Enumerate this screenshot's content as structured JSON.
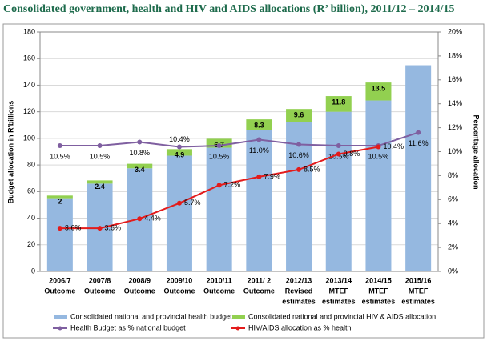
{
  "chart_data": {
    "type": "bar",
    "title": "Consolidated government, health and HIV and AIDS allocations (R’ billion), 2011/12 – 2014/15",
    "ylabel": "Budget allocation in R'billions",
    "y2label": "Percentage allocation",
    "categories": [
      [
        "2006/7",
        "Outcome"
      ],
      [
        "2007/8",
        "Outcome"
      ],
      [
        "2008/9",
        "Outcome"
      ],
      [
        "2009/10",
        "Outcome"
      ],
      [
        "2010/11",
        "Outcome"
      ],
      [
        "2011/ 2",
        "Outcome"
      ],
      [
        "2012/13",
        "Revised",
        "estimates"
      ],
      [
        "2013/14",
        "MTEF",
        "estimates"
      ],
      [
        "2014/15",
        "MTEF",
        "estimates"
      ],
      [
        "2015/16",
        "MTEF",
        "estimates"
      ]
    ],
    "stacked": true,
    "series": [
      {
        "name": "Consolidated national and provincial health budget",
        "type": "bar",
        "color": "#95b8e0",
        "values": [
          55,
          66,
          77.5,
          87,
          93,
          106,
          112.5,
          120,
          128.5,
          155
        ]
      },
      {
        "name": "Consolidated national and provincial HIV & AIDS allocation",
        "type": "bar",
        "color": "#92d050",
        "data_labels": true,
        "values": [
          2,
          2.4,
          3.4,
          4.9,
          6.7,
          8.3,
          9.6,
          11.8,
          13.5,
          null
        ]
      },
      {
        "name": "Health Budget as % national budget",
        "type": "line",
        "axis": "y2",
        "color": "#7f5fa0",
        "data_labels": true,
        "values": [
          10.5,
          10.5,
          10.8,
          10.4,
          10.5,
          11.0,
          10.6,
          10.5,
          10.5,
          11.6
        ],
        "value_labels": [
          "10.5%",
          "10.5%",
          "10.8%",
          "10.4%",
          "10.5%",
          "11.0%",
          "10.6%",
          "10.5%",
          "10.5%",
          "11.6%"
        ]
      },
      {
        "name": "HIV/AIDS allocation as % health",
        "type": "line",
        "axis": "y2",
        "color": "#e31b1b",
        "data_labels": true,
        "values": [
          3.6,
          3.6,
          4.4,
          5.7,
          7.2,
          7.9,
          8.5,
          9.8,
          10.4,
          null
        ],
        "value_labels": [
          "3.6%",
          "3.6%",
          "4.4%",
          "5.7%",
          "7.2%",
          "7.9%",
          "8.5%",
          "9.8%",
          "10.4%",
          null
        ]
      }
    ],
    "ylim": [
      0,
      180
    ],
    "yticks": [
      0,
      20,
      40,
      60,
      80,
      100,
      120,
      140,
      160,
      180
    ],
    "y2lim": [
      0,
      20
    ],
    "y2ticks": [
      {
        "value": 0,
        "label": "0%"
      },
      {
        "value": 2,
        "label": "2%"
      },
      {
        "value": 4,
        "label": "4%"
      },
      {
        "value": 6,
        "label": "6%"
      },
      {
        "value": 8,
        "label": "8%"
      },
      {
        "value": 10,
        "label": "10%"
      },
      {
        "value": 12,
        "label": "12%"
      },
      {
        "value": 14,
        "label": "14%"
      },
      {
        "value": 16,
        "label": "16%"
      },
      {
        "value": 18,
        "label": "18%"
      },
      {
        "value": 20,
        "label": "20%"
      }
    ],
    "grid": true
  }
}
